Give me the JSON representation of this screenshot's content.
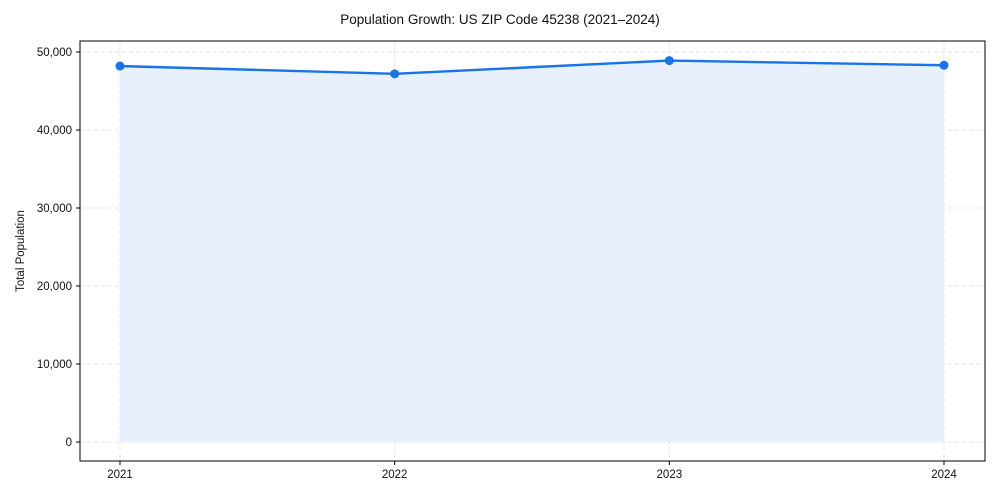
{
  "chart_data": {
    "type": "line",
    "title": "Population Growth: US ZIP Code 45238 (2021–2024)",
    "xlabel": "",
    "ylabel": "Total Population",
    "categories": [
      "2021",
      "2022",
      "2023",
      "2024"
    ],
    "series": [
      {
        "name": "Total Population",
        "values": [
          48200,
          47200,
          48900,
          48300
        ],
        "color": "#1a73e8",
        "fill": "#e4eefc"
      }
    ],
    "ylim": [
      0,
      50000
    ],
    "yticks": [
      0,
      10000,
      20000,
      30000,
      40000,
      50000
    ],
    "ytick_labels": [
      "0",
      "10,000",
      "20,000",
      "30,000",
      "40,000",
      "50,000"
    ],
    "grid": true,
    "legend": null
  }
}
